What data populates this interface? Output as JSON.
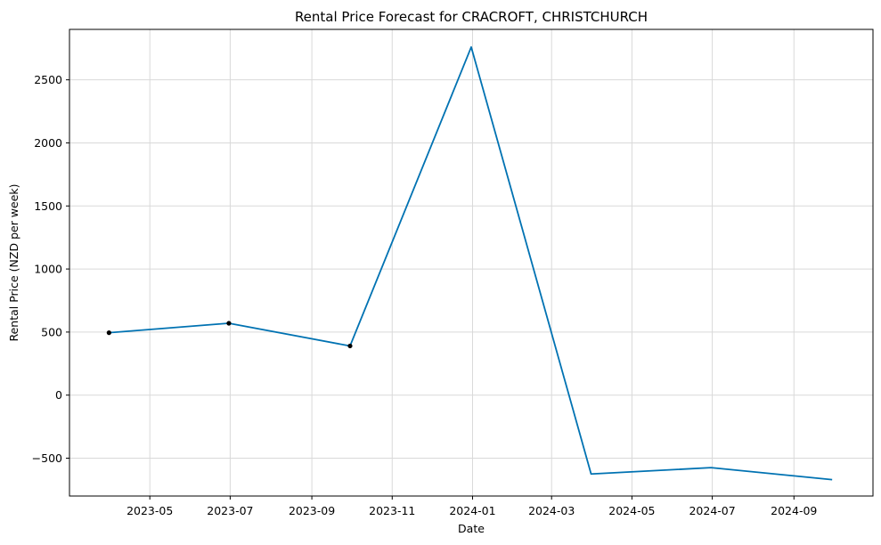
{
  "chart_data": {
    "type": "line",
    "title": "Rental Price Forecast for CRACROFT, CHRISTCHURCH",
    "xlabel": "Date",
    "ylabel": "Rental Price (NZD per week)",
    "xlim": [
      "2023-03-01",
      "2024-10-31"
    ],
    "ylim": [
      -800,
      2900
    ],
    "grid": true,
    "x_ticks": [
      {
        "date": "2023-05-01",
        "label": "2023-05"
      },
      {
        "date": "2023-07-01",
        "label": "2023-07"
      },
      {
        "date": "2023-09-01",
        "label": "2023-09"
      },
      {
        "date": "2023-11-01",
        "label": "2023-11"
      },
      {
        "date": "2024-01-01",
        "label": "2024-01"
      },
      {
        "date": "2024-03-01",
        "label": "2024-03"
      },
      {
        "date": "2024-05-01",
        "label": "2024-05"
      },
      {
        "date": "2024-07-01",
        "label": "2024-07"
      },
      {
        "date": "2024-09-01",
        "label": "2024-09"
      }
    ],
    "y_ticks": [
      {
        "value": -500,
        "label": "−500"
      },
      {
        "value": 0,
        "label": "0"
      },
      {
        "value": 500,
        "label": "500"
      },
      {
        "value": 1000,
        "label": "1000"
      },
      {
        "value": 1500,
        "label": "1500"
      },
      {
        "value": 2000,
        "label": "2000"
      },
      {
        "value": 2500,
        "label": "2500"
      }
    ],
    "colors": {
      "forecast": "#0072b2",
      "observed": "#000000",
      "grid": "#d9d9d9"
    },
    "series": [
      {
        "role": "forecast",
        "x": [
          "2023-03-31",
          "2023-06-30",
          "2023-09-30",
          "2023-12-31",
          "2024-03-31",
          "2024-06-30",
          "2024-09-30"
        ],
        "values": [
          495,
          570,
          390,
          2760,
          -625,
          -575,
          -670
        ]
      },
      {
        "role": "observed",
        "x": [
          "2023-03-31",
          "2023-06-30",
          "2023-09-30"
        ],
        "values": [
          495,
          570,
          390
        ]
      }
    ]
  }
}
